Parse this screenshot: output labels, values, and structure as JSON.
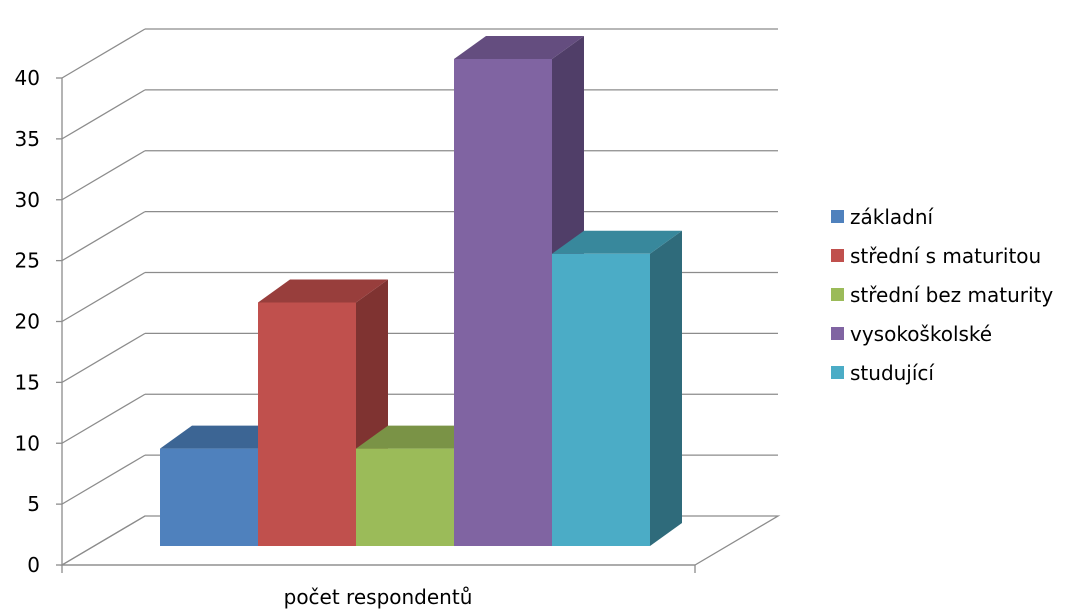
{
  "chart_data": {
    "type": "bar",
    "three_d": true,
    "categories": [
      "počet respondentů"
    ],
    "series": [
      {
        "name": "základní",
        "values": [
          8
        ],
        "color": "#4F81BD",
        "top_color": "#3C6594",
        "side_color": "#385D8A"
      },
      {
        "name": "střední s maturitou",
        "values": [
          20
        ],
        "color": "#C0504D",
        "top_color": "#983E3C",
        "side_color": "#7F3331"
      },
      {
        "name": "střední bez maturity",
        "values": [
          8
        ],
        "color": "#9BBB59",
        "top_color": "#7A9346",
        "side_color": "#71893F"
      },
      {
        "name": "vysokoškolské",
        "values": [
          40
        ],
        "color": "#8064A2",
        "top_color": "#644D7F",
        "side_color": "#503E68"
      },
      {
        "name": "studující",
        "values": [
          24
        ],
        "color": "#4BACC6",
        "top_color": "#38889C",
        "side_color": "#2F6B7B"
      }
    ],
    "ylim": [
      0,
      40
    ],
    "yticks": [
      "0",
      "5",
      "10",
      "15",
      "20",
      "25",
      "30",
      "35",
      "40"
    ],
    "title": "",
    "xlabel": "",
    "ylabel": "",
    "grid": true,
    "legend_position": "right"
  }
}
